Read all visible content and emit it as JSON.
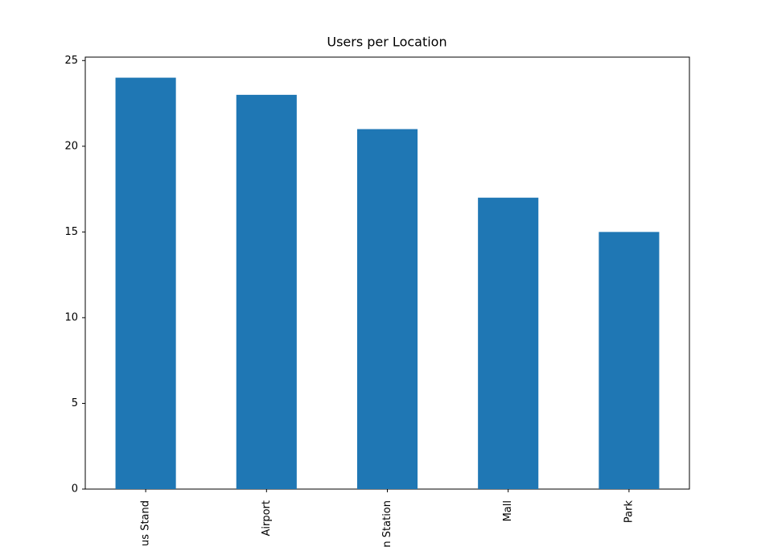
{
  "chart_data": {
    "type": "bar",
    "title": "Users per Location",
    "categories": [
      "Bus Stand",
      "Airport",
      "Train Station",
      "Mall",
      "Park"
    ],
    "values": [
      24,
      23,
      21,
      17,
      15
    ],
    "color": "#1f77b4",
    "ylim": [
      0,
      25.2
    ],
    "yticks": [
      0,
      5,
      10,
      15,
      20,
      25
    ]
  }
}
